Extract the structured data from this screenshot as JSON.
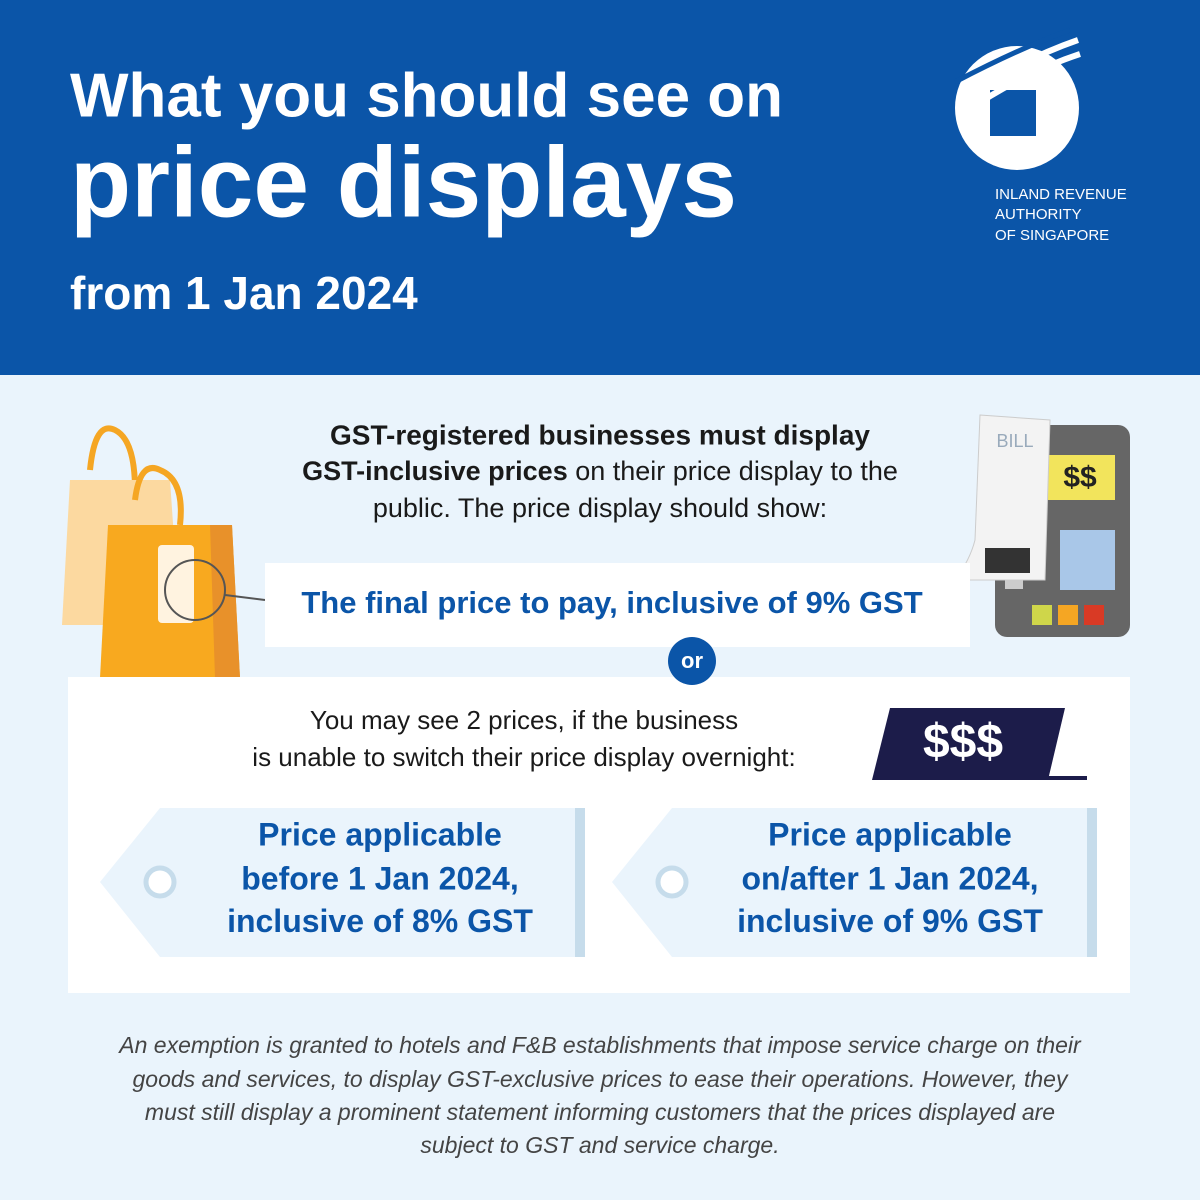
{
  "header": {
    "title_line1": "What you should see on",
    "title_line2": "price displays",
    "subtitle": "from 1 Jan 2024"
  },
  "logo": {
    "lines": [
      "INLAND REVENUE",
      "AUTHORITY",
      "OF SINGAPORE"
    ]
  },
  "intro": {
    "bold_line1": "GST-registered businesses must display",
    "bold_line2": "GST-inclusive prices",
    "rest_line2": " on their price display to the",
    "line3": "public. The price display should show:"
  },
  "illustration": {
    "bill": "BILL",
    "screen": "$$"
  },
  "option1": {
    "text": "The final price to pay, inclusive of ",
    "rate": "9%",
    "suffix": " GST"
  },
  "or": "or",
  "option2": {
    "lines": [
      "You may see 2 prices, if the business",
      "is unable to switch their price display overnight:"
    ],
    "sign": "$$$"
  },
  "tags": [
    {
      "line1": "Price applicable",
      "line2": "before 1 Jan 2024,",
      "line3": "inclusive of ",
      "rate": "8%",
      "suffix": " GST"
    },
    {
      "line1": "Price applicable",
      "line2": "on/after 1 Jan 2024,",
      "line3": "inclusive of ",
      "rate": "9%",
      "suffix": " GST"
    }
  ],
  "footnote": [
    "An exemption is granted to hotels and F&B establishments that impose service charge on their",
    "goods and services, to display GST-exclusive prices to ease their operations. However, they",
    "must still display a prominent statement informing customers that the prices displayed are",
    "subject to GST and service charge."
  ]
}
